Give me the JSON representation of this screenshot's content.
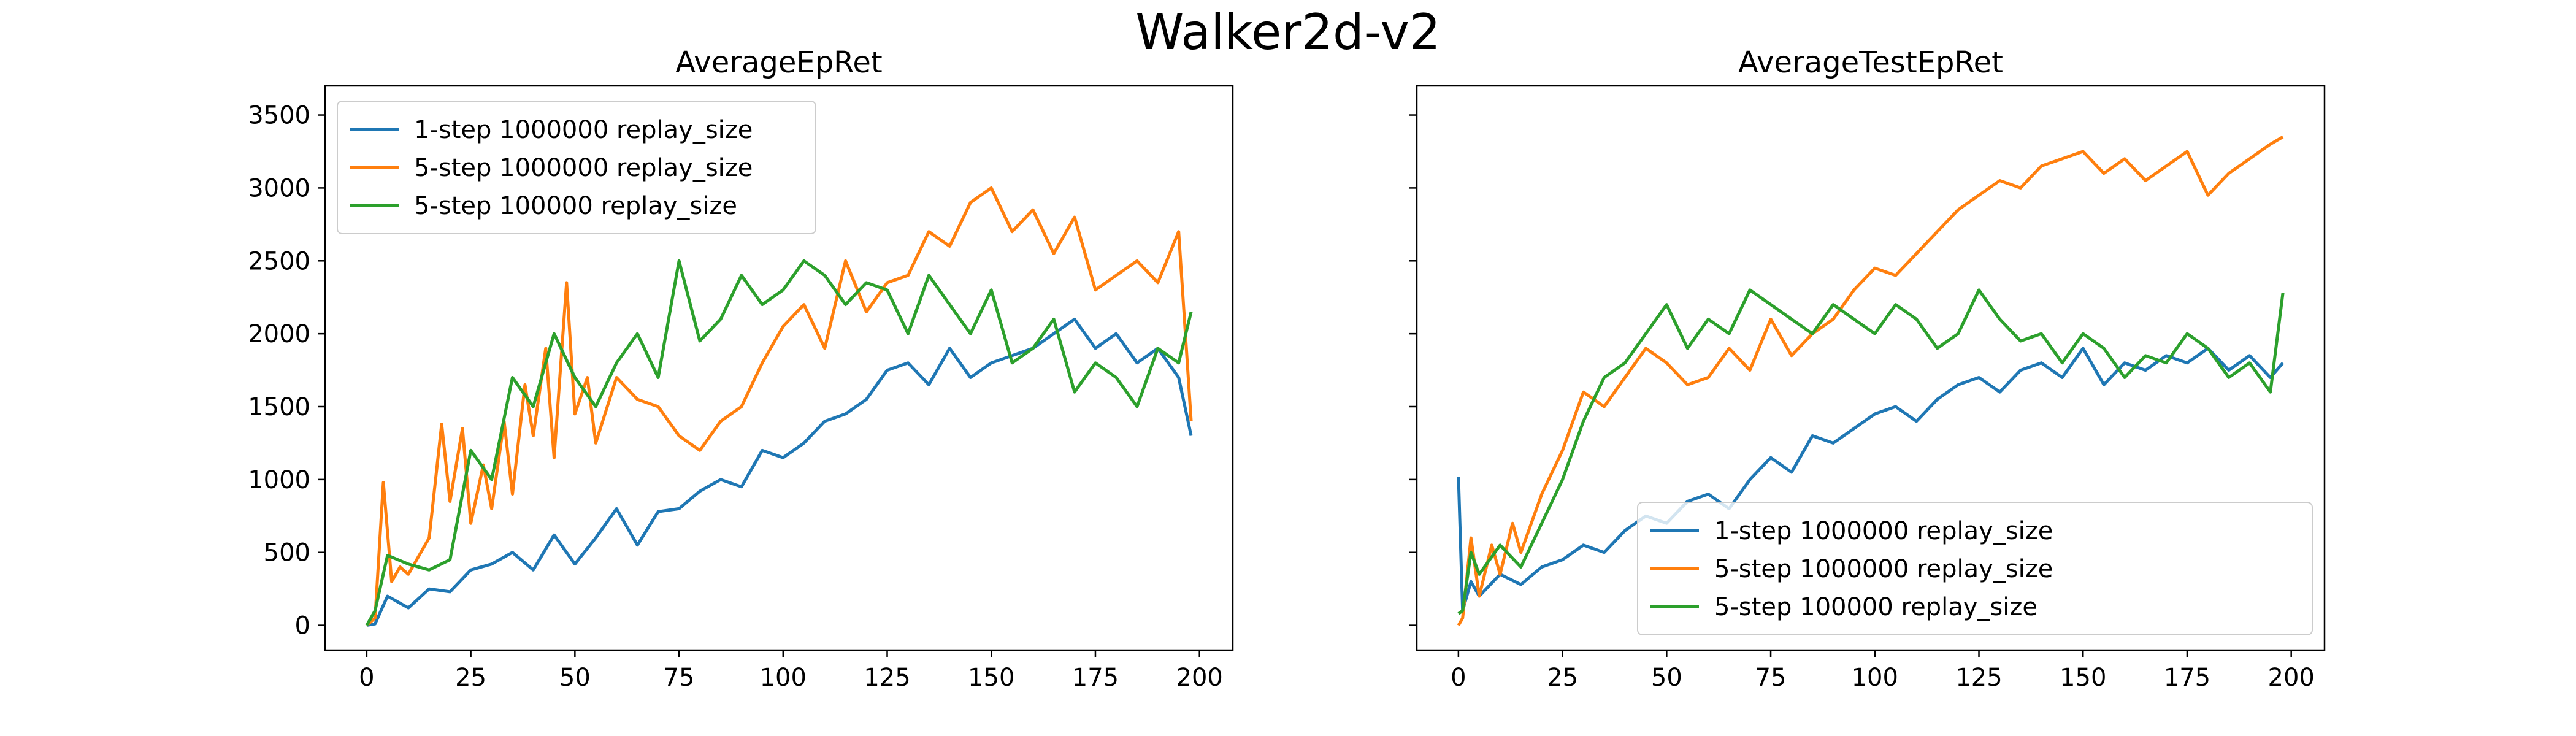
{
  "figure_title": "Walker2d-v2",
  "colors": {
    "1-step 1000000 replay_size": "#1f77b4",
    "5-step 1000000 replay_size": "#ff7f0e",
    "5-step 100000 replay_size": "#2ca02c"
  },
  "chart_data": [
    {
      "type": "line",
      "title": "AverageEpRet",
      "xlabel": "",
      "ylabel": "",
      "xlim": [
        -10,
        208
      ],
      "ylim": [
        -170,
        3700
      ],
      "xticks": [
        0,
        25,
        50,
        75,
        100,
        125,
        150,
        175,
        200
      ],
      "yticks": [
        0,
        500,
        1000,
        1500,
        2000,
        2500,
        3000,
        3500
      ],
      "grid": false,
      "legend": "upper left",
      "series": [
        {
          "name": "1-step 1000000 replay_size",
          "x": [
            0,
            2,
            5,
            10,
            15,
            20,
            25,
            30,
            35,
            40,
            45,
            50,
            55,
            60,
            65,
            70,
            75,
            80,
            85,
            90,
            95,
            100,
            105,
            110,
            115,
            120,
            125,
            130,
            135,
            140,
            145,
            150,
            155,
            160,
            165,
            170,
            175,
            180,
            185,
            190,
            195,
            198
          ],
          "y": [
            0,
            10,
            200,
            120,
            250,
            230,
            380,
            420,
            500,
            380,
            620,
            420,
            600,
            800,
            550,
            780,
            800,
            920,
            1000,
            950,
            1200,
            1150,
            1250,
            1400,
            1450,
            1550,
            1750,
            1800,
            1650,
            1900,
            1700,
            1800,
            1850,
            1900,
            2000,
            2100,
            1900,
            2000,
            1800,
            1900,
            1700,
            1300
          ]
        },
        {
          "name": "5-step 1000000 replay_size",
          "x": [
            0,
            2,
            4,
            6,
            8,
            10,
            15,
            18,
            20,
            23,
            25,
            28,
            30,
            33,
            35,
            38,
            40,
            43,
            45,
            48,
            50,
            53,
            55,
            60,
            65,
            70,
            75,
            80,
            85,
            90,
            95,
            100,
            105,
            110,
            115,
            120,
            125,
            130,
            135,
            140,
            145,
            150,
            155,
            160,
            165,
            170,
            175,
            180,
            185,
            190,
            195,
            198
          ],
          "y": [
            0,
            50,
            980,
            300,
            400,
            350,
            600,
            1380,
            850,
            1350,
            700,
            1100,
            800,
            1400,
            900,
            1650,
            1300,
            1900,
            1150,
            2350,
            1450,
            1700,
            1250,
            1700,
            1550,
            1500,
            1300,
            1200,
            1400,
            1500,
            1800,
            2050,
            2200,
            1900,
            2500,
            2150,
            2350,
            2400,
            2700,
            2600,
            2900,
            3000,
            2700,
            2850,
            2550,
            2800,
            2300,
            2400,
            2500,
            2350,
            2700,
            1400
          ]
        },
        {
          "name": "5-step 100000 replay_size",
          "x": [
            0,
            2,
            5,
            10,
            15,
            20,
            25,
            30,
            35,
            40,
            45,
            50,
            55,
            60,
            65,
            70,
            75,
            80,
            85,
            90,
            95,
            100,
            105,
            110,
            115,
            120,
            125,
            130,
            135,
            140,
            145,
            150,
            155,
            160,
            165,
            170,
            175,
            180,
            185,
            190,
            195,
            198
          ],
          "y": [
            0,
            100,
            480,
            420,
            380,
            450,
            1200,
            1000,
            1700,
            1500,
            2000,
            1700,
            1500,
            1800,
            2000,
            1700,
            2500,
            1950,
            2100,
            2400,
            2200,
            2300,
            2500,
            2400,
            2200,
            2350,
            2300,
            2000,
            2400,
            2200,
            2000,
            2300,
            1800,
            1900,
            2100,
            1600,
            1800,
            1700,
            1500,
            1900,
            1800,
            2150
          ]
        }
      ]
    },
    {
      "type": "line",
      "title": "AverageTestEpRet",
      "xlabel": "",
      "ylabel": "",
      "xlim": [
        -10,
        208
      ],
      "ylim": [
        -170,
        3700
      ],
      "xticks": [
        0,
        25,
        50,
        75,
        100,
        125,
        150,
        175,
        200
      ],
      "yticks": [
        0,
        500,
        1000,
        1500,
        2000,
        2500,
        3000,
        3500
      ],
      "shared_y": true,
      "grid": false,
      "legend": "lower right",
      "series": [
        {
          "name": "1-step 1000000 replay_size",
          "x": [
            0,
            1,
            3,
            5,
            10,
            15,
            20,
            25,
            30,
            35,
            40,
            45,
            50,
            55,
            60,
            65,
            70,
            75,
            80,
            85,
            90,
            95,
            100,
            105,
            110,
            115,
            120,
            125,
            130,
            135,
            140,
            145,
            150,
            155,
            160,
            165,
            170,
            175,
            180,
            185,
            190,
            195,
            198
          ],
          "y": [
            1020,
            100,
            300,
            200,
            350,
            280,
            400,
            450,
            550,
            500,
            650,
            750,
            700,
            850,
            900,
            800,
            1000,
            1150,
            1050,
            1300,
            1250,
            1350,
            1450,
            1500,
            1400,
            1550,
            1650,
            1700,
            1600,
            1750,
            1800,
            1700,
            1900,
            1650,
            1800,
            1750,
            1850,
            1800,
            1900,
            1750,
            1850,
            1700,
            1800
          ]
        },
        {
          "name": "5-step 1000000 replay_size",
          "x": [
            0,
            1,
            3,
            5,
            8,
            10,
            13,
            15,
            20,
            25,
            30,
            35,
            40,
            45,
            50,
            55,
            60,
            65,
            70,
            75,
            80,
            85,
            90,
            95,
            100,
            105,
            110,
            115,
            120,
            125,
            130,
            135,
            140,
            145,
            150,
            155,
            160,
            165,
            170,
            175,
            180,
            185,
            190,
            195,
            198
          ],
          "y": [
            0,
            50,
            600,
            200,
            550,
            350,
            700,
            500,
            900,
            1200,
            1600,
            1500,
            1700,
            1900,
            1800,
            1650,
            1700,
            1900,
            1750,
            2100,
            1850,
            2000,
            2100,
            2300,
            2450,
            2400,
            2550,
            2700,
            2850,
            2950,
            3050,
            3000,
            3150,
            3200,
            3250,
            3100,
            3200,
            3050,
            3150,
            3250,
            2950,
            3100,
            3200,
            3300,
            3350
          ]
        },
        {
          "name": "5-step 100000 replay_size",
          "x": [
            0,
            1,
            3,
            5,
            10,
            15,
            20,
            25,
            30,
            35,
            40,
            45,
            50,
            55,
            60,
            65,
            70,
            75,
            80,
            85,
            90,
            95,
            100,
            105,
            110,
            115,
            120,
            125,
            130,
            135,
            140,
            145,
            150,
            155,
            160,
            165,
            170,
            175,
            180,
            185,
            190,
            195,
            198
          ],
          "y": [
            80,
            100,
            500,
            350,
            550,
            400,
            700,
            1000,
            1400,
            1700,
            1800,
            2000,
            2200,
            1900,
            2100,
            2000,
            2300,
            2200,
            2100,
            2000,
            2200,
            2100,
            2000,
            2200,
            2100,
            1900,
            2000,
            2300,
            2100,
            1950,
            2000,
            1800,
            2000,
            1900,
            1700,
            1850,
            1800,
            2000,
            1900,
            1700,
            1800,
            1600,
            2280
          ]
        }
      ]
    }
  ]
}
